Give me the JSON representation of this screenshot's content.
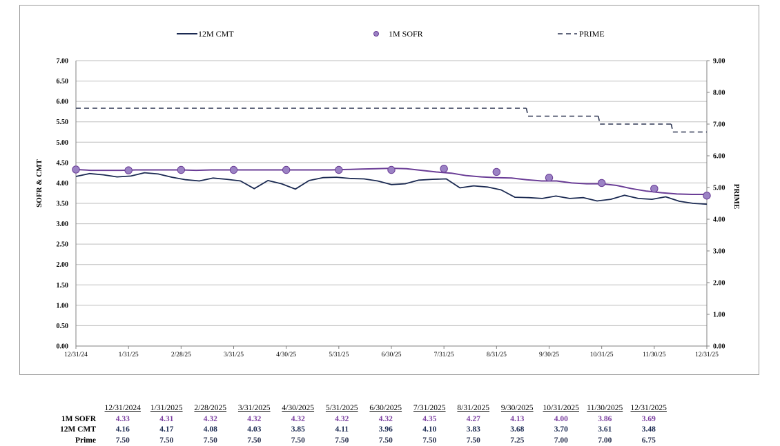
{
  "colors": {
    "cmt": "#1b2a52",
    "sofr_line": "#6a3d96",
    "sofr_marker": "#9b82c4",
    "prime": "#2b3350",
    "grid": "#bdbdbd"
  },
  "chart_data": {
    "type": "line",
    "legend": [
      "12M CMT",
      "1M SOFR",
      "PRIME"
    ],
    "legend_position": "top",
    "ylabel": "SOFR & CMT",
    "y2label": "PRIME",
    "ylim": [
      0,
      7
    ],
    "y2lim": [
      0,
      9
    ],
    "yticks": [
      "0.00",
      "0.50",
      "1.00",
      "1.50",
      "2.00",
      "2.50",
      "3.00",
      "3.50",
      "4.00",
      "4.50",
      "5.00",
      "5.50",
      "6.00",
      "6.50",
      "7.00"
    ],
    "y2ticks": [
      "0.00",
      "1.00",
      "2.00",
      "3.00",
      "4.00",
      "5.00",
      "6.00",
      "7.00",
      "8.00",
      "9.00"
    ],
    "xticks": [
      "12/31/24",
      "1/31/25",
      "2/28/25",
      "3/31/25",
      "4/30/25",
      "5/31/25",
      "6/30/25",
      "7/31/25",
      "8/31/25",
      "9/30/25",
      "10/31/25",
      "11/30/25",
      "12/31/25"
    ],
    "grid": true,
    "series": [
      {
        "name": "1M SOFR",
        "axis": "left",
        "values": [
          4.33,
          4.31,
          4.31,
          4.31,
          4.32,
          4.32,
          4.32,
          4.32,
          4.31,
          4.32,
          4.32,
          4.32,
          4.32,
          4.32,
          4.32,
          4.32,
          4.32,
          4.32,
          4.33,
          4.34,
          4.35,
          4.36,
          4.35,
          4.31,
          4.27,
          4.24,
          4.18,
          4.15,
          4.13,
          4.12,
          4.08,
          4.05,
          4.05,
          4.0,
          3.98,
          3.98,
          3.94,
          3.86,
          3.8,
          3.76,
          3.73,
          3.72,
          3.72
        ]
      },
      {
        "name": "12M CMT",
        "axis": "left",
        "values": [
          4.16,
          4.23,
          4.2,
          4.15,
          4.17,
          4.25,
          4.22,
          4.14,
          4.08,
          4.05,
          4.12,
          4.09,
          4.05,
          3.86,
          4.06,
          3.98,
          3.85,
          4.06,
          4.13,
          4.14,
          4.11,
          4.1,
          4.05,
          3.96,
          3.98,
          4.07,
          4.09,
          4.1,
          3.88,
          3.93,
          3.9,
          3.83,
          3.65,
          3.64,
          3.62,
          3.68,
          3.62,
          3.64,
          3.56,
          3.6,
          3.7,
          3.62,
          3.6,
          3.66,
          3.55,
          3.5,
          3.48
        ]
      },
      {
        "name": "PRIME",
        "axis": "right",
        "steps": [
          {
            "from": "12/31/24",
            "to": "9/17/25",
            "value": 7.5
          },
          {
            "from": "9/18/25",
            "to": "10/29/25",
            "value": 7.25
          },
          {
            "from": "10/30/25",
            "to": "12/10/25",
            "value": 7.0
          },
          {
            "from": "12/11/25",
            "to": "12/31/25",
            "value": 6.75
          }
        ]
      }
    ],
    "sofr_markers": [
      4.33,
      4.31,
      4.32,
      4.32,
      4.32,
      4.32,
      4.32,
      4.35,
      4.27,
      4.13,
      4.0,
      3.86,
      3.69
    ]
  },
  "table": {
    "dates": [
      "12/31/2024",
      "1/31/2025",
      "2/28/2025",
      "3/31/2025",
      "4/30/2025",
      "5/31/2025",
      "6/30/2025",
      "7/31/2025",
      "8/31/2025",
      "9/30/2025",
      "10/31/2025",
      "11/30/2025",
      "12/31/2025"
    ],
    "rows": [
      {
        "label": "1M SOFR",
        "color": "#7b3fa0",
        "values": [
          "4.33",
          "4.31",
          "4.32",
          "4.32",
          "4.32",
          "4.32",
          "4.32",
          "4.35",
          "4.27",
          "4.13",
          "4.00",
          "3.86",
          "3.69"
        ]
      },
      {
        "label": "12M CMT",
        "color": "#1b2a52",
        "values": [
          "4.16",
          "4.17",
          "4.08",
          "4.03",
          "3.85",
          "4.11",
          "3.96",
          "4.10",
          "3.83",
          "3.68",
          "3.70",
          "3.61",
          "3.48"
        ]
      },
      {
        "label": "Prime",
        "color": "#2b3350",
        "values": [
          "7.50",
          "7.50",
          "7.50",
          "7.50",
          "7.50",
          "7.50",
          "7.50",
          "7.50",
          "7.50",
          "7.25",
          "7.00",
          "7.00",
          "6.75"
        ]
      }
    ]
  }
}
